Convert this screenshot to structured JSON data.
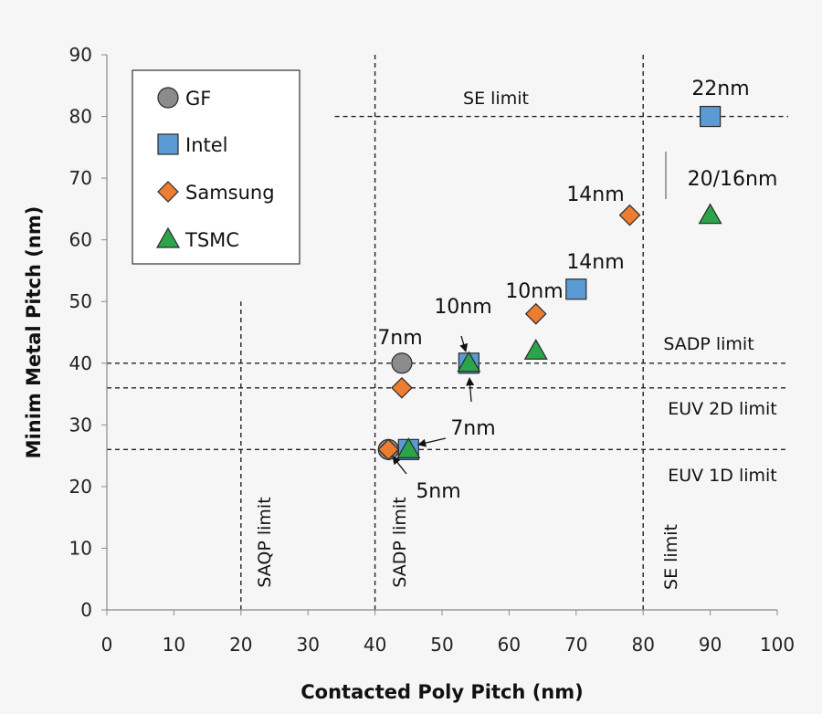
{
  "chart_data": {
    "type": "scatter",
    "title": "",
    "xlabel": "Contacted Poly Pitch (nm)",
    "ylabel": "Minim Metal Pitch (nm)",
    "xlim": [
      0,
      100
    ],
    "ylim": [
      0,
      90
    ],
    "xticks": [
      "0",
      "10",
      "20",
      "30",
      "40",
      "50",
      "60",
      "70",
      "80",
      "90",
      "100"
    ],
    "yticks": [
      "0",
      "10",
      "20",
      "30",
      "40",
      "50",
      "60",
      "70",
      "80",
      "90"
    ],
    "grid": false,
    "legend_position": "top-left",
    "series": [
      {
        "name": "GF",
        "marker": "circle",
        "color": "#8c8c8c",
        "points": [
          {
            "x": 44,
            "y": 40
          },
          {
            "x": 42,
            "y": 26
          }
        ]
      },
      {
        "name": "Intel",
        "marker": "square",
        "color": "#5b9bd5",
        "points": [
          {
            "x": 90,
            "y": 80
          },
          {
            "x": 70,
            "y": 52
          },
          {
            "x": 54,
            "y": 40
          },
          {
            "x": 45,
            "y": 26
          }
        ]
      },
      {
        "name": "Samsung",
        "marker": "diamond",
        "color": "#ed7d31",
        "points": [
          {
            "x": 78,
            "y": 64
          },
          {
            "x": 64,
            "y": 48
          },
          {
            "x": 44,
            "y": 36
          },
          {
            "x": 42,
            "y": 26
          }
        ]
      },
      {
        "name": "TSMC",
        "marker": "triangle",
        "color": "#2ca54a",
        "points": [
          {
            "x": 90,
            "y": 64
          },
          {
            "x": 64,
            "y": 42
          },
          {
            "x": 54,
            "y": 40
          },
          {
            "x": 45,
            "y": 26
          }
        ]
      }
    ],
    "limit_lines": [
      {
        "label": "SE limit",
        "orientation": "horizontal",
        "value": 80,
        "from": 34,
        "to": 100
      },
      {
        "label": "SADP limit",
        "orientation": "horizontal",
        "value": 40,
        "from": 0,
        "to": 100
      },
      {
        "label": "EUV 2D limit",
        "orientation": "horizontal",
        "value": 36,
        "from": 0,
        "to": 100
      },
      {
        "label": "EUV 1D limit",
        "orientation": "horizontal",
        "value": 26,
        "from": 0,
        "to": 100
      },
      {
        "label": "SAQP limit",
        "orientation": "vertical",
        "value": 20,
        "from": 0,
        "to": 50
      },
      {
        "label": "SADP limit",
        "orientation": "vertical",
        "value": 40,
        "from": 0,
        "to": 90
      },
      {
        "label": "SE limit",
        "orientation": "vertical",
        "value": 80,
        "from": 0,
        "to": 90
      }
    ],
    "node_labels": [
      "22nm",
      "20/16nm",
      "14nm",
      "14nm",
      "10nm",
      "10nm",
      "7nm",
      "7nm",
      "5nm"
    ]
  }
}
